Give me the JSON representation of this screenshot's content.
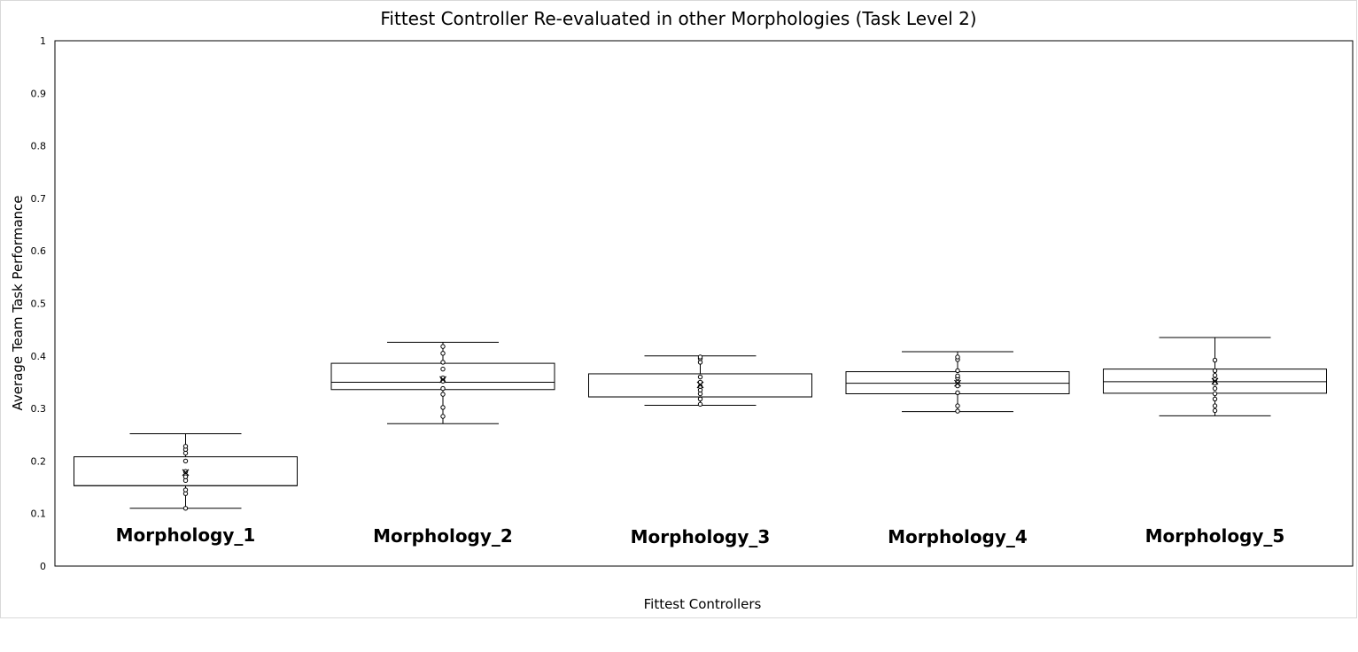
{
  "chart_data": {
    "type": "box",
    "title": "Fittest Controller Re-evaluated in other Morphologies (Task Level 2)",
    "xlabel": "Fittest Controllers",
    "ylabel": "Average Team Task Performance",
    "ylim": [
      0,
      1
    ],
    "yticks": [
      "0",
      "0.1",
      "0.2",
      "0.3",
      "0.4",
      "0.5",
      "0.6",
      "0.7",
      "0.8",
      "0.9",
      "1"
    ],
    "grid": false,
    "legend": "none",
    "series": [
      {
        "category": "Morphology_1",
        "min": 0.11,
        "q1": 0.153,
        "median": 0.153,
        "q3": 0.208,
        "max": 0.252,
        "mean": 0.178,
        "points": [
          0.11,
          0.138,
          0.145,
          0.163,
          0.17,
          0.18,
          0.2,
          0.215,
          0.222,
          0.228
        ]
      },
      {
        "category": "Morphology_2",
        "min": 0.271,
        "q1": 0.336,
        "median": 0.35,
        "q3": 0.386,
        "max": 0.426,
        "mean": 0.355,
        "points": [
          0.285,
          0.302,
          0.327,
          0.338,
          0.352,
          0.358,
          0.375,
          0.388,
          0.405,
          0.418
        ]
      },
      {
        "category": "Morphology_3",
        "min": 0.306,
        "q1": 0.322,
        "median": 0.322,
        "q3": 0.366,
        "max": 0.4,
        "mean": 0.345,
        "points": [
          0.308,
          0.318,
          0.328,
          0.335,
          0.342,
          0.35,
          0.36,
          0.388,
          0.395,
          0.398
        ]
      },
      {
        "category": "Morphology_4",
        "min": 0.294,
        "q1": 0.328,
        "median": 0.348,
        "q3": 0.37,
        "max": 0.408,
        "mean": 0.348,
        "points": [
          0.295,
          0.305,
          0.33,
          0.343,
          0.35,
          0.358,
          0.362,
          0.372,
          0.393,
          0.398
        ]
      },
      {
        "category": "Morphology_5",
        "min": 0.286,
        "q1": 0.329,
        "median": 0.351,
        "q3": 0.375,
        "max": 0.435,
        "mean": 0.352,
        "points": [
          0.296,
          0.305,
          0.318,
          0.328,
          0.338,
          0.348,
          0.355,
          0.363,
          0.372,
          0.392
        ]
      }
    ]
  }
}
